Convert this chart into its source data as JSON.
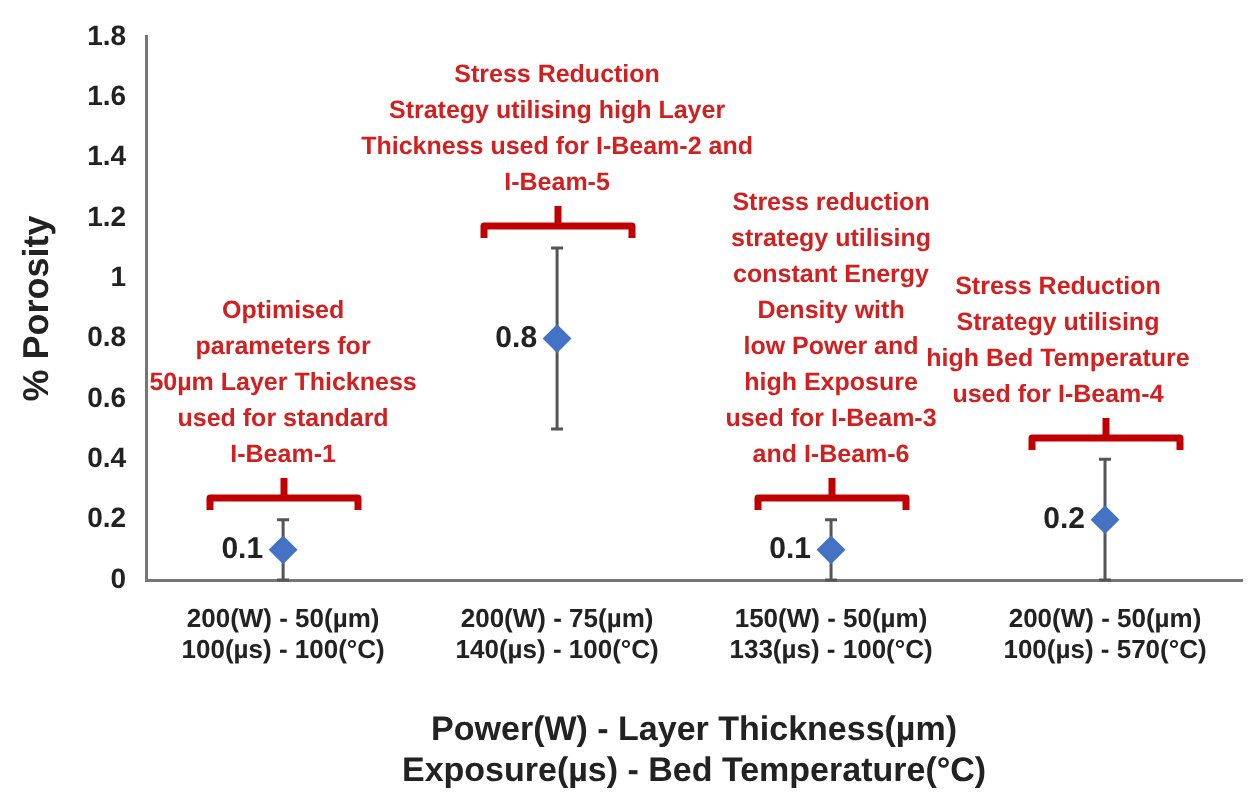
{
  "chart_data": {
    "type": "scatter",
    "xlabel": "Power(W) - Layer Thickness(µm)\nExposure(µs) - Bed Temperature(°C)",
    "ylabel": "% Porosity",
    "categories": [
      "200(W) - 50(µm)\n100(µs) - 100(°C)",
      "200(W) - 75(µm)\n140(µs) - 100(°C)",
      "150(W) - 50(µm)\n133(µs) - 100(°C)",
      "200(W) - 50(µm)\n100(µs) - 570(°C)"
    ],
    "values": [
      0.1,
      0.8,
      0.1,
      0.2
    ],
    "errors": [
      [
        0,
        0.2
      ],
      [
        0.5,
        1.1
      ],
      [
        0,
        0.2
      ],
      [
        0,
        0.4
      ]
    ],
    "color": "#4472c4",
    "marker": "diamond",
    "data_labels": true,
    "ylim": [
      0,
      1.8
    ],
    "yticks": [
      0,
      0.2,
      0.4,
      0.6,
      0.8,
      1,
      1.2,
      1.4,
      1.6,
      1.8
    ],
    "grid": false,
    "legend": false,
    "annotations": [
      "Optimised\nparameters for\n50µm Layer Thickness\nused for standard\nI-Beam-1",
      "Stress Reduction\nStrategy utilising high Layer\nThickness used for I-Beam-2 and\nI-Beam-5",
      "Stress reduction\nstrategy utilising\nconstant Energy\nDensity with\nlow Power and\nhigh Exposure\nused for I-Beam-3\nand I-Beam-6",
      "Stress Reduction\nStrategy utilising\nhigh Bed Temperature\nused for I-Beam-4"
    ]
  }
}
